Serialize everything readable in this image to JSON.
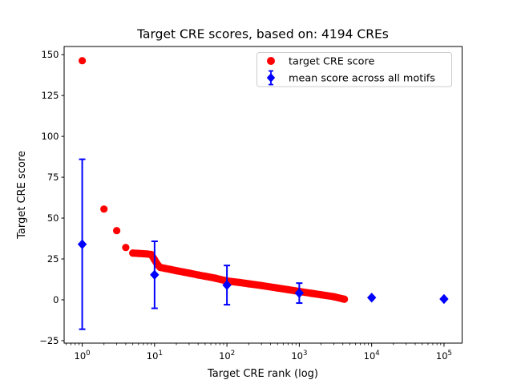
{
  "figure": {
    "background": "#ffffff",
    "plot_border_color": "#000000"
  },
  "chart_data": {
    "type": "scatter",
    "title": "Target CRE scores, based on: 4194 CREs",
    "xlabel": "Target CRE rank (log)",
    "ylabel": "Target CRE score",
    "x_scale": "log10",
    "xlim_log10": [
      -0.25,
      5.25
    ],
    "ylim": [
      -26.5,
      155
    ],
    "x_major_ticks": [
      1,
      10,
      100,
      1000,
      10000,
      100000
    ],
    "x_tick_exponents": [
      0,
      1,
      2,
      3,
      4,
      5
    ],
    "x_tick_base": "10",
    "y_ticks": [
      -25,
      0,
      25,
      50,
      75,
      100,
      125,
      150
    ],
    "grid": false,
    "legend": {
      "position": "upper right",
      "entries": [
        {
          "label": "target CRE score",
          "marker": "circle",
          "color": "#ff0000"
        },
        {
          "label": "mean score across all motifs",
          "marker": "diamond-errorbar",
          "color": "#0000ff"
        }
      ]
    },
    "series": [
      {
        "name": "target CRE score",
        "marker": "circle",
        "color": "#ff0000",
        "total_points_depicted": 4194,
        "points_sampled": true,
        "points": [
          [
            1,
            146.3
          ],
          [
            2,
            55.5
          ],
          [
            3,
            42.3
          ],
          [
            4,
            32.0
          ],
          [
            5,
            28.6
          ],
          [
            6,
            28.4
          ],
          [
            7,
            28.2
          ],
          [
            8,
            28.0
          ],
          [
            9,
            27.7
          ],
          [
            10,
            24.5
          ],
          [
            11,
            21.5
          ],
          [
            12,
            19.8
          ],
          [
            14,
            19.2
          ],
          [
            17,
            18.5
          ],
          [
            20,
            17.8
          ],
          [
            25,
            17.0
          ],
          [
            30,
            16.3
          ],
          [
            40,
            15.2
          ],
          [
            50,
            14.4
          ],
          [
            70,
            13.2
          ],
          [
            100,
            11.5
          ],
          [
            150,
            10.6
          ],
          [
            200,
            9.8
          ],
          [
            300,
            8.7
          ],
          [
            500,
            7.2
          ],
          [
            700,
            6.2
          ],
          [
            1000,
            5.1
          ],
          [
            1500,
            3.9
          ],
          [
            2000,
            3.1
          ],
          [
            3000,
            1.9
          ],
          [
            4194,
            0.4
          ]
        ]
      },
      {
        "name": "mean score across all motifs",
        "marker": "diamond",
        "color": "#0000ff",
        "points": [
          {
            "x": 1,
            "mean": 34.0,
            "std": 52.0
          },
          {
            "x": 10,
            "mean": 15.3,
            "std": 20.5
          },
          {
            "x": 100,
            "mean": 9.0,
            "std": 12.0
          },
          {
            "x": 1000,
            "mean": 4.1,
            "std": 6.1
          },
          {
            "x": 10000,
            "mean": 1.3,
            "std": 0
          },
          {
            "x": 100000,
            "mean": 0.5,
            "std": 0
          }
        ]
      }
    ]
  }
}
